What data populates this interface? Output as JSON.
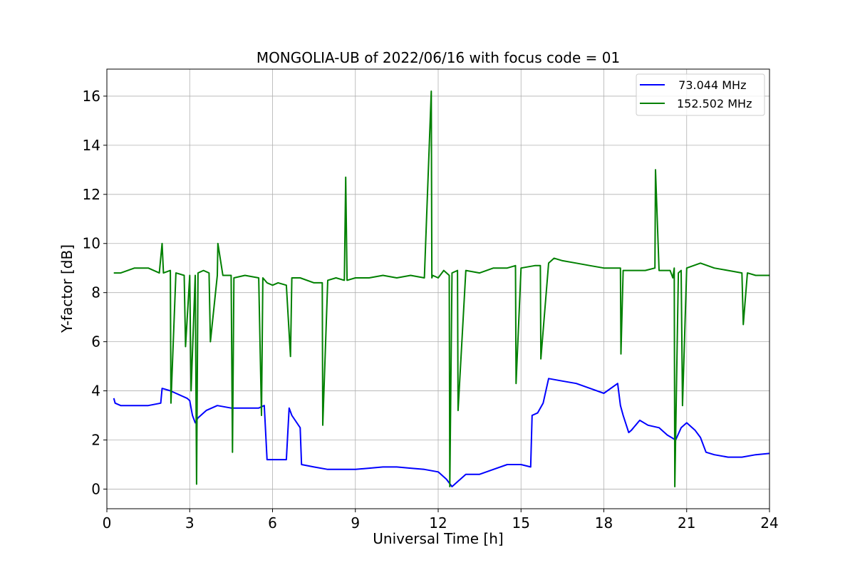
{
  "chart_data": {
    "type": "line",
    "title": "MONGOLIA-UB of 2022/06/16 with focus code = 01",
    "xlabel": "Universal Time [h]",
    "ylabel": "Y-factor [dB]",
    "xlim": [
      0,
      24
    ],
    "ylim": [
      -0.8,
      17.1
    ],
    "xticks": [
      0,
      3,
      6,
      9,
      12,
      15,
      18,
      21,
      24
    ],
    "yticks": [
      0,
      2,
      4,
      6,
      8,
      10,
      12,
      14,
      16
    ],
    "xtick_labels": [
      "0",
      "3",
      "6",
      "9",
      "12",
      "15",
      "18",
      "21",
      "24"
    ],
    "ytick_labels": [
      "0",
      "2",
      "4",
      "6",
      "8",
      "10",
      "12",
      "14",
      "16"
    ],
    "grid": true,
    "legend_position": "top-right",
    "series": [
      {
        "name": "  73.044 MHz",
        "color": "#0000ff",
        "x": [
          0.25,
          0.3,
          0.5,
          1.0,
          1.5,
          1.95,
          2.0,
          2.3,
          2.5,
          2.9,
          3.0,
          3.1,
          3.2,
          3.3,
          3.6,
          4.0,
          4.5,
          5.0,
          5.5,
          5.7,
          5.8,
          6.0,
          6.5,
          6.6,
          6.7,
          7.0,
          7.05,
          7.5,
          8.0,
          8.5,
          9.0,
          9.5,
          10.0,
          10.5,
          11.0,
          11.5,
          12.0,
          12.3,
          12.5,
          12.7,
          13.0,
          13.5,
          14.0,
          14.5,
          15.0,
          15.35,
          15.4,
          15.6,
          15.8,
          16.0,
          16.5,
          17.0,
          17.5,
          18.0,
          18.5,
          18.6,
          18.7,
          18.9,
          19.0,
          19.3,
          19.6,
          20.0,
          20.3,
          20.6,
          20.8,
          21.0,
          21.3,
          21.5,
          21.7,
          22.0,
          22.5,
          23.0,
          23.5,
          24.0
        ],
        "y": [
          3.7,
          3.5,
          3.4,
          3.4,
          3.4,
          3.5,
          4.1,
          4.0,
          3.9,
          3.7,
          3.6,
          3.0,
          2.7,
          2.9,
          3.2,
          3.4,
          3.3,
          3.3,
          3.3,
          3.4,
          1.2,
          1.2,
          1.2,
          3.3,
          3.0,
          2.5,
          1.0,
          0.9,
          0.8,
          0.8,
          0.8,
          0.85,
          0.9,
          0.9,
          0.85,
          0.8,
          0.7,
          0.4,
          0.1,
          0.3,
          0.6,
          0.6,
          0.8,
          1.0,
          1.0,
          0.9,
          3.0,
          3.1,
          3.5,
          4.5,
          4.4,
          4.3,
          4.1,
          3.9,
          4.3,
          3.4,
          3.0,
          2.3,
          2.4,
          2.8,
          2.6,
          2.5,
          2.2,
          2.0,
          2.5,
          2.7,
          2.4,
          2.1,
          1.5,
          1.4,
          1.3,
          1.3,
          1.4,
          1.45
        ]
      },
      {
        "name": "152.502 MHz",
        "color": "#008000",
        "x": [
          0.25,
          0.5,
          1.0,
          1.5,
          1.9,
          2.0,
          2.05,
          2.3,
          2.32,
          2.5,
          2.8,
          2.85,
          3.0,
          3.05,
          3.2,
          3.25,
          3.3,
          3.5,
          3.7,
          3.75,
          4.0,
          4.02,
          4.2,
          4.5,
          4.55,
          4.6,
          5.0,
          5.5,
          5.6,
          5.65,
          5.8,
          6.0,
          6.2,
          6.5,
          6.65,
          6.7,
          7.0,
          7.5,
          7.8,
          7.82,
          8.0,
          8.3,
          8.6,
          8.65,
          8.7,
          9.0,
          9.5,
          10.0,
          10.5,
          11.0,
          11.5,
          11.75,
          11.77,
          11.8,
          12.0,
          12.2,
          12.4,
          12.42,
          12.5,
          12.7,
          12.72,
          13.0,
          13.5,
          14.0,
          14.5,
          14.8,
          14.82,
          15.0,
          15.5,
          15.7,
          15.72,
          16.0,
          16.2,
          16.5,
          17.0,
          17.5,
          18.0,
          18.5,
          18.6,
          18.62,
          18.7,
          19.0,
          19.5,
          19.85,
          19.87,
          20.0,
          20.4,
          20.5,
          20.55,
          20.57,
          20.7,
          20.8,
          20.85,
          21.0,
          21.5,
          22.0,
          22.5,
          23.0,
          23.05,
          23.2,
          23.5,
          24.0
        ],
        "y": [
          8.8,
          8.8,
          9.0,
          9.0,
          8.8,
          10.0,
          8.8,
          8.9,
          3.5,
          8.8,
          8.7,
          5.8,
          8.7,
          4.0,
          8.7,
          0.2,
          8.8,
          8.9,
          8.8,
          6.0,
          8.7,
          10.0,
          8.7,
          8.7,
          1.5,
          8.6,
          8.7,
          8.6,
          3.0,
          8.6,
          8.4,
          8.3,
          8.4,
          8.3,
          5.4,
          8.6,
          8.6,
          8.4,
          8.4,
          2.6,
          8.5,
          8.6,
          8.5,
          12.7,
          8.5,
          8.6,
          8.6,
          8.7,
          8.6,
          8.7,
          8.6,
          16.2,
          8.6,
          8.7,
          8.6,
          8.9,
          8.7,
          0.1,
          8.8,
          8.9,
          3.2,
          8.9,
          8.8,
          9.0,
          9.0,
          9.1,
          4.3,
          9.0,
          9.1,
          9.1,
          5.3,
          9.2,
          9.4,
          9.3,
          9.2,
          9.1,
          9.0,
          9.0,
          9.0,
          5.5,
          8.9,
          8.9,
          8.9,
          9.0,
          13.0,
          8.9,
          8.9,
          8.6,
          9.0,
          0.1,
          8.8,
          8.9,
          3.4,
          9.0,
          9.2,
          9.0,
          8.9,
          8.8,
          6.7,
          8.8,
          8.7,
          8.7
        ]
      }
    ]
  }
}
